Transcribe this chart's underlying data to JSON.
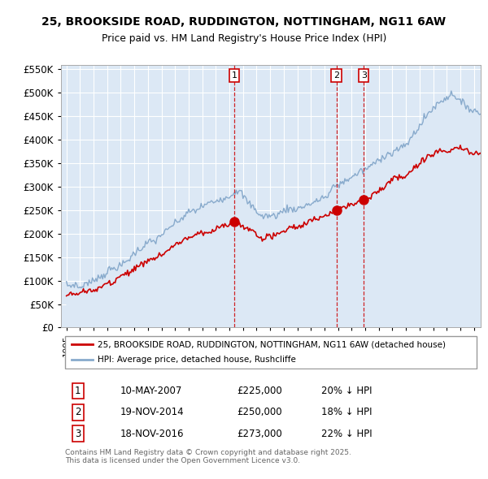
{
  "title": "25, BROOKSIDE ROAD, RUDDINGTON, NOTTINGHAM, NG11 6AW",
  "subtitle": "Price paid vs. HM Land Registry's House Price Index (HPI)",
  "legend_property": "25, BROOKSIDE ROAD, RUDDINGTON, NOTTINGHAM, NG11 6AW (detached house)",
  "legend_hpi": "HPI: Average price, detached house, Rushcliffe",
  "footer": "Contains HM Land Registry data © Crown copyright and database right 2025.\nThis data is licensed under the Open Government Licence v3.0.",
  "transactions": [
    {
      "num": 1,
      "date": "10-MAY-2007",
      "price": "£225,000",
      "hpi_note": "20% ↓ HPI"
    },
    {
      "num": 2,
      "date": "19-NOV-2014",
      "price": "£250,000",
      "hpi_note": "18% ↓ HPI"
    },
    {
      "num": 3,
      "date": "18-NOV-2016",
      "price": "£273,000",
      "hpi_note": "22% ↓ HPI"
    }
  ],
  "sale_years": [
    2007.36,
    2014.89,
    2016.89
  ],
  "sale_prices": [
    225000,
    250000,
    273000
  ],
  "ylim": [
    0,
    560000
  ],
  "yticks": [
    0,
    50000,
    100000,
    150000,
    200000,
    250000,
    300000,
    350000,
    400000,
    450000,
    500000,
    550000
  ],
  "background_color": "#dce8f5",
  "line_color_property": "#cc0000",
  "line_color_hpi": "#88aacc",
  "vline_color": "#cc0000"
}
